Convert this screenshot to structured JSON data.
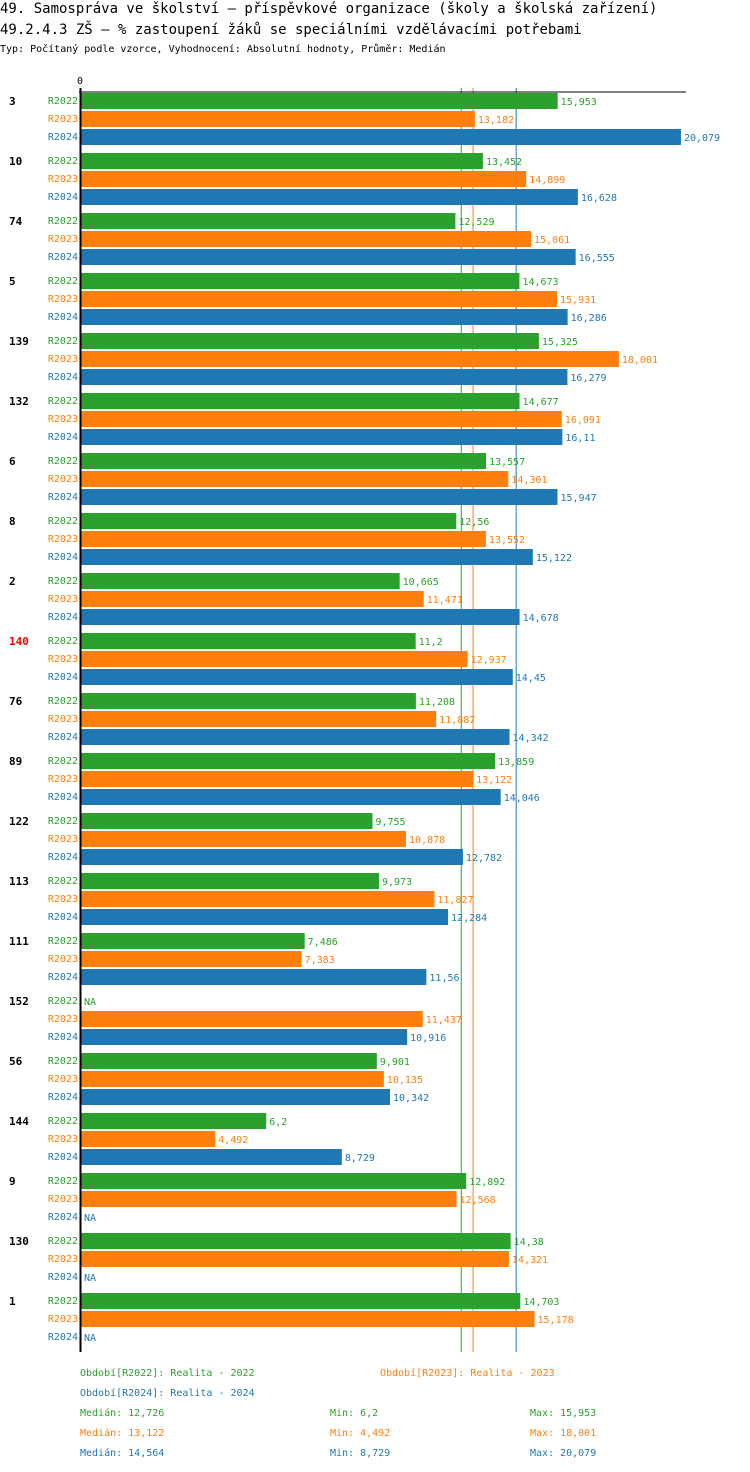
{
  "header": {
    "title": "49. Samospráva ve školství – příspěvkové organizace (školy a školská zařízení)",
    "subtitle": "49.2.4.3 ZŠ – % zastoupení žáků se speciálními vzdělávacími potřebami",
    "meta": "Typ: Počítaný podle vzorce, Vyhodnocení: Absolutní hodnoty, Průměr: Medián"
  },
  "colors": {
    "R2022": "#2ca02c",
    "R2023": "#ff7f0e",
    "R2024": "#1f77b4",
    "highlight": "#ff0000",
    "axis": "#000000"
  },
  "chart_data": {
    "type": "bar",
    "orientation": "horizontal",
    "title": "49.2.4.3 ZŠ – % zastoupení žáků se speciálními vzdělávacími potřebami",
    "xlabel": "",
    "ylabel": "",
    "x_tick_labels": [
      "0"
    ],
    "xlim": [
      0,
      20.079
    ],
    "grid": false,
    "highlighted_category": "140",
    "categories": [
      "3",
      "10",
      "74",
      "5",
      "139",
      "132",
      "6",
      "8",
      "2",
      "140",
      "76",
      "89",
      "122",
      "113",
      "111",
      "152",
      "56",
      "144",
      "9",
      "130",
      "1"
    ],
    "series": [
      {
        "name": "R2022",
        "values": [
          15.953,
          13.452,
          12.529,
          14.673,
          15.325,
          14.677,
          13.557,
          12.56,
          10.665,
          11.2,
          11.208,
          13.859,
          9.755,
          9.973,
          7.486,
          null,
          9.901,
          6.2,
          12.892,
          14.38,
          14.703
        ],
        "labels": [
          "15,953",
          "13,452",
          "12,529",
          "14,673",
          "15,325",
          "14,677",
          "13,557",
          "12,56",
          "10,665",
          "11,2",
          "11,208",
          "13,859",
          "9,755",
          "9,973",
          "7,486",
          "NA",
          "9,901",
          "6,2",
          "12,892",
          "14,38",
          "14,703"
        ]
      },
      {
        "name": "R2023",
        "values": [
          13.182,
          14.899,
          15.061,
          15.931,
          18.001,
          16.091,
          14.301,
          13.552,
          11.471,
          12.937,
          11.887,
          13.122,
          10.878,
          11.827,
          7.383,
          11.437,
          10.135,
          4.492,
          12.568,
          14.321,
          15.178
        ],
        "labels": [
          "13,182",
          "14,899",
          "15,061",
          "15,931",
          "18,001",
          "16,091",
          "14,301",
          "13,552",
          "11,471",
          "12,937",
          "11,887",
          "13,122",
          "10,878",
          "11,827",
          "7,383",
          "11,437",
          "10,135",
          "4,492",
          "12,568",
          "14,321",
          "15,178"
        ]
      },
      {
        "name": "R2024",
        "values": [
          20.079,
          16.628,
          16.555,
          16.286,
          16.279,
          16.11,
          15.947,
          15.122,
          14.678,
          14.45,
          14.342,
          14.046,
          12.782,
          12.284,
          11.56,
          10.916,
          10.342,
          8.729,
          null,
          null,
          null
        ],
        "labels": [
          "20,079",
          "16,628",
          "16,555",
          "16,286",
          "16,279",
          "16,11",
          "15,947",
          "15,122",
          "14,678",
          "14,45",
          "14,342",
          "14,046",
          "12,782",
          "12,284",
          "11,56",
          "10,916",
          "10,342",
          "8,729",
          "NA",
          "NA",
          "NA"
        ]
      }
    ],
    "medians": {
      "R2022": 12.726,
      "R2023": 13.122,
      "R2024": 14.564
    }
  },
  "legend": {
    "periods": [
      {
        "key": "R2022",
        "text": "Období[R2022]: Realita - 2022"
      },
      {
        "key": "R2023",
        "text": "Období[R2023]: Realita - 2023"
      },
      {
        "key": "R2024",
        "text": "Období[R2024]: Realita - 2024"
      }
    ],
    "stats": [
      {
        "key": "R2022",
        "median": "Medián: 12,726",
        "min": "Min: 6,2",
        "max": "Max: 15,953"
      },
      {
        "key": "R2023",
        "median": "Medián: 13,122",
        "min": "Min: 4,492",
        "max": "Max: 18,001"
      },
      {
        "key": "R2024",
        "median": "Medián: 14,564",
        "min": "Min: 8,729",
        "max": "Max: 20,079"
      }
    ]
  }
}
